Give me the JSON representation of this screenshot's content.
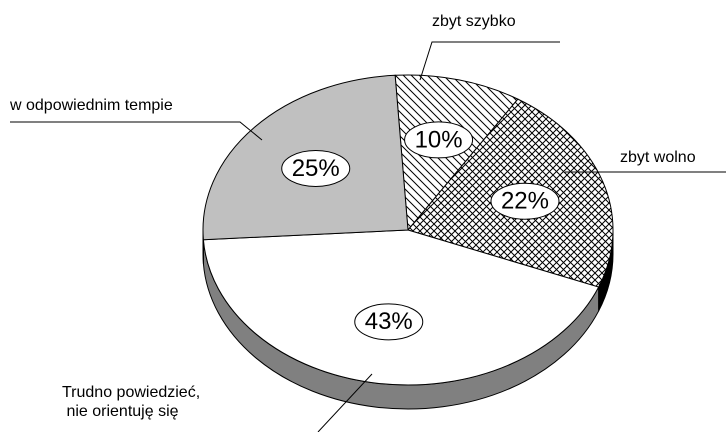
{
  "chart_data": {
    "type": "pie",
    "categories": [
      "zbyt szybko",
      "zbyt wolno",
      "Trudno powiedzieć,\n nie orientuję się",
      "w odpowiednim tempie"
    ],
    "values": [
      10,
      22,
      43,
      25
    ],
    "value_labels": [
      "10%",
      "22%",
      "43%",
      "25%"
    ],
    "colors": [
      "#ffffff",
      "#ffffff",
      "#ffffff",
      "#c0c0c0"
    ],
    "patterns": [
      "diagonal",
      "crosshatch",
      "none",
      "none"
    ],
    "side_colors": [
      "#808080",
      "#000000",
      "#808080",
      "#808080"
    ]
  }
}
